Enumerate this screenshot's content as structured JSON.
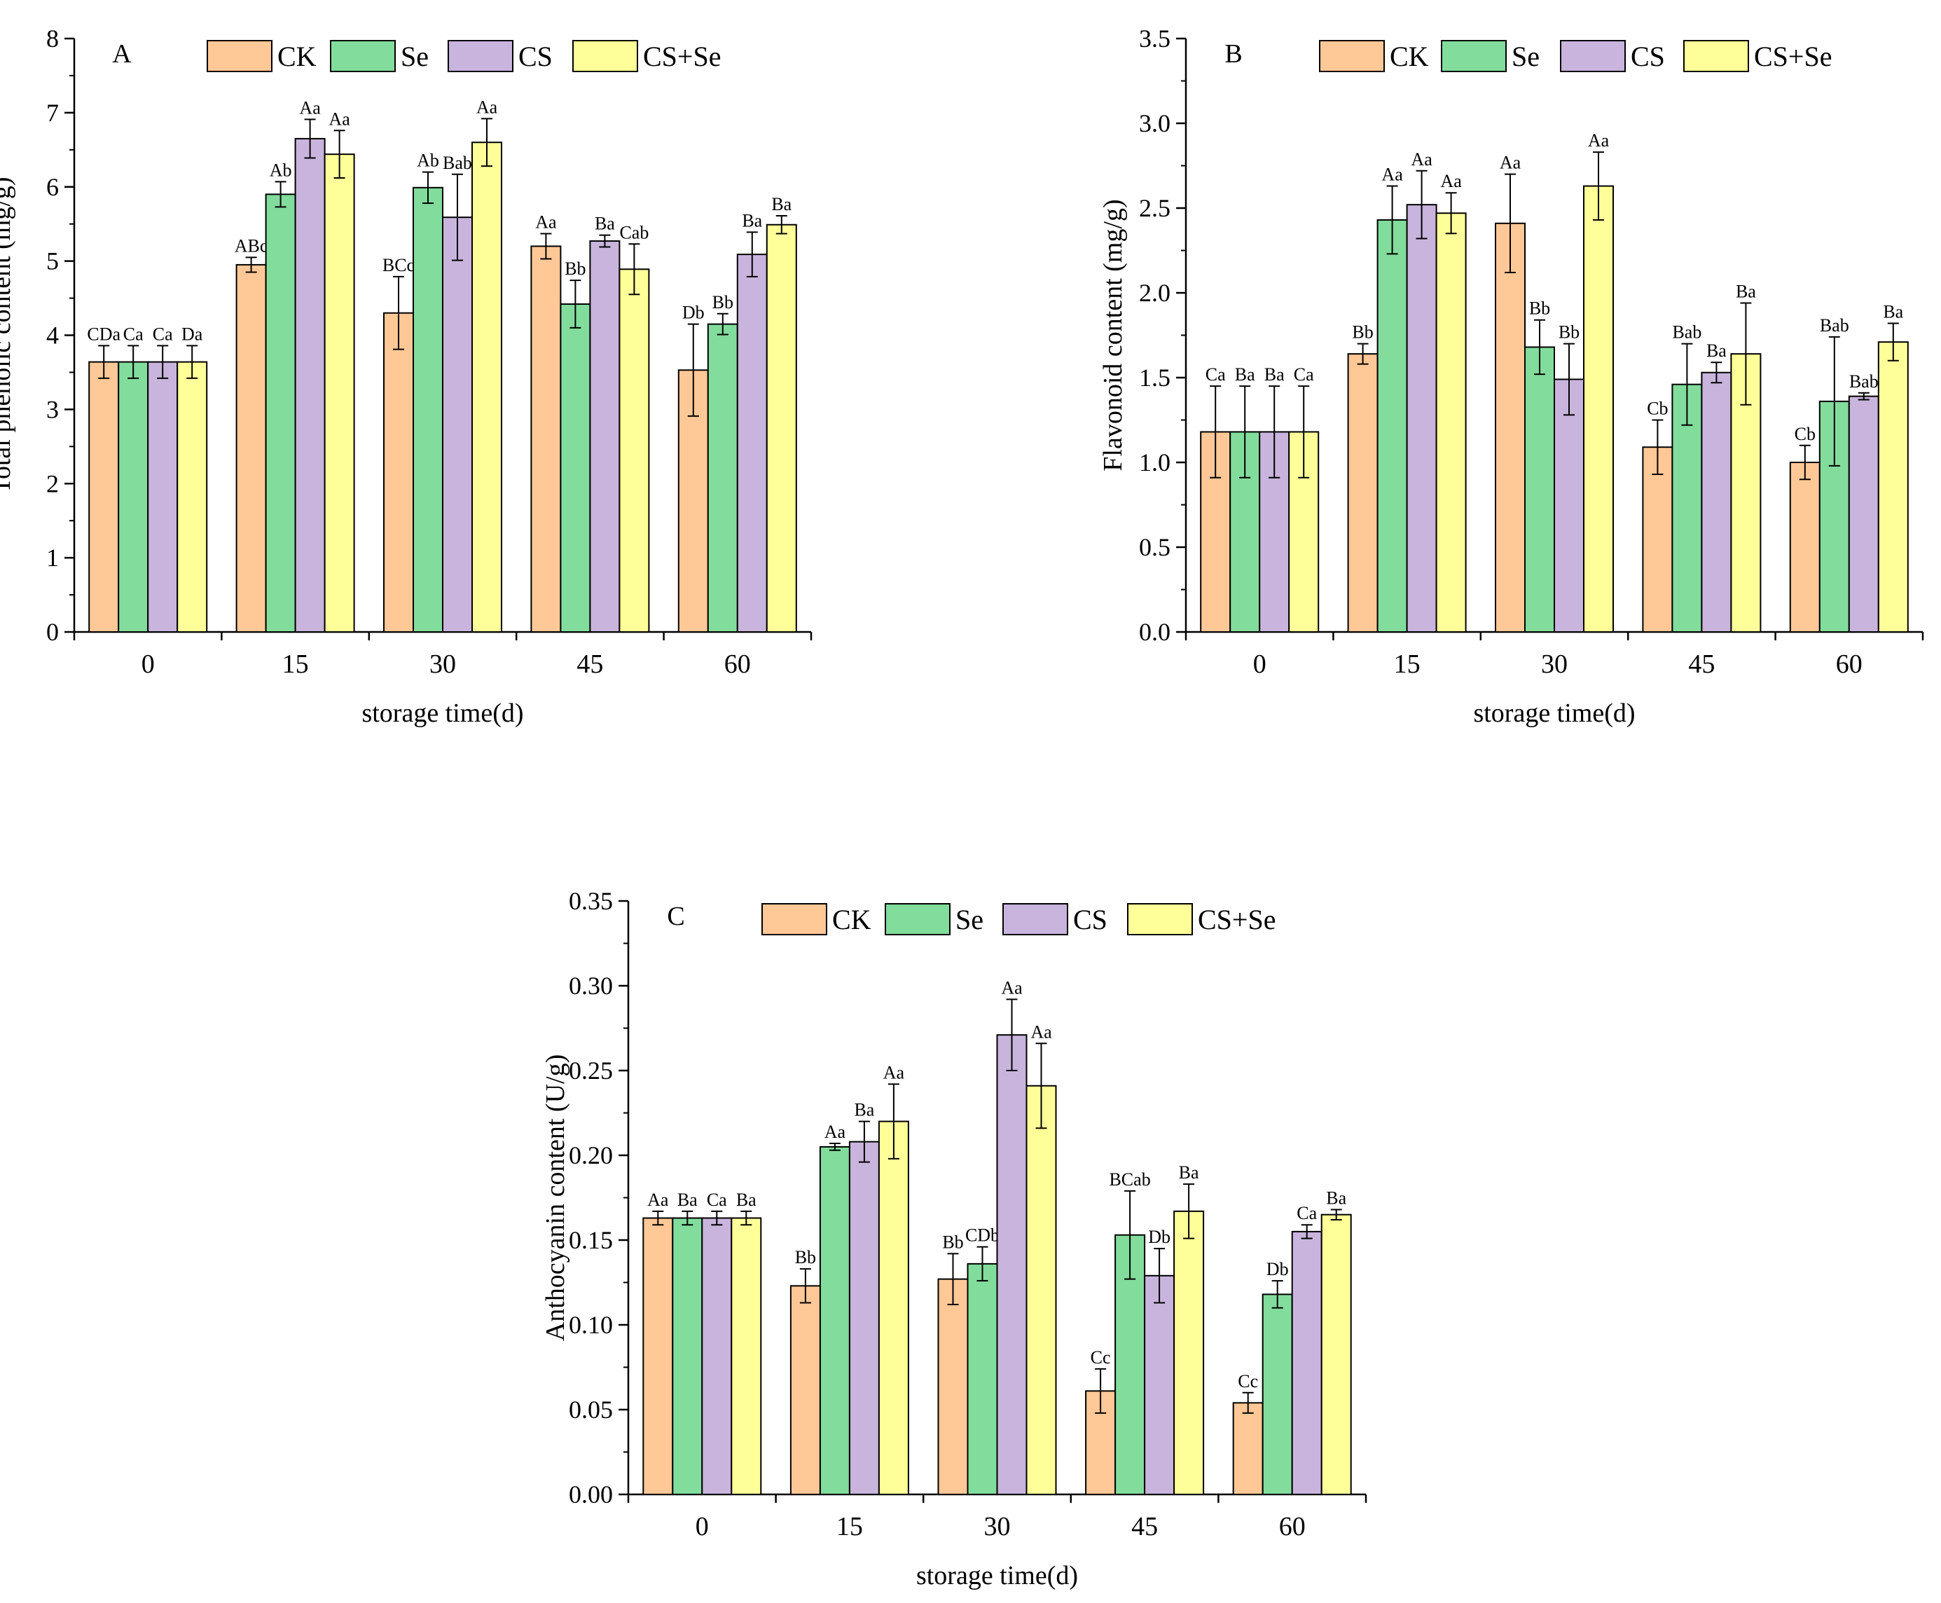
{
  "figure": {
    "series_colors": {
      "CK": "#FFC896",
      "Se": "#82DC9C",
      "CS": "#C8B4DC",
      "CS+Se": "#FFFF9A"
    },
    "edge_color": "#000000"
  },
  "chart_data": [
    {
      "type": "bar",
      "panel_label": "A",
      "title": "",
      "xlabel": "storage time(d)",
      "ylabel": "Total phenolic content (mg/g)",
      "categories": [
        "0",
        "15",
        "30",
        "45",
        "60"
      ],
      "ylim": [
        0,
        8
      ],
      "yticks": [
        0,
        1,
        2,
        3,
        4,
        5,
        6,
        7,
        8
      ],
      "ytick_labels": [
        "0",
        "1",
        "2",
        "3",
        "4",
        "5",
        "6",
        "7",
        "8"
      ],
      "legend": [
        "CK",
        "Se",
        "CS",
        "CS+Se"
      ],
      "legend_position": "top",
      "series": [
        {
          "name": "CK",
          "values": [
            3.64,
            4.95,
            4.3,
            5.2,
            3.53
          ],
          "errors": [
            0.22,
            0.1,
            0.49,
            0.17,
            0.62
          ],
          "letters": [
            "CDa",
            "ABc",
            "BCc",
            "Aa",
            "Db"
          ]
        },
        {
          "name": "Se",
          "values": [
            3.64,
            5.9,
            5.99,
            4.42,
            4.15
          ],
          "errors": [
            0.22,
            0.17,
            0.21,
            0.32,
            0.14
          ],
          "letters": [
            "Ca",
            "Ab",
            "Ab",
            "Bb",
            "Bb"
          ]
        },
        {
          "name": "CS",
          "values": [
            3.64,
            6.65,
            5.59,
            5.27,
            5.09
          ],
          "errors": [
            0.22,
            0.26,
            0.58,
            0.08,
            0.3
          ],
          "letters": [
            "Ca",
            "Aa",
            "Bab",
            "Ba",
            "Ba"
          ]
        },
        {
          "name": "CS+Se",
          "values": [
            3.64,
            6.44,
            6.6,
            4.89,
            5.49
          ],
          "errors": [
            0.22,
            0.32,
            0.32,
            0.34,
            0.12
          ],
          "letters": [
            "Da",
            "Aa",
            "Aa",
            "Cab",
            "Ba"
          ]
        }
      ]
    },
    {
      "type": "bar",
      "panel_label": "B",
      "title": "",
      "xlabel": "storage time(d)",
      "ylabel": "Flavonoid content (mg/g)",
      "categories": [
        "0",
        "15",
        "30",
        "45",
        "60"
      ],
      "ylim": [
        0,
        3.5
      ],
      "yticks": [
        0,
        0.5,
        1,
        1.5,
        2,
        2.5,
        3,
        3.5
      ],
      "ytick_labels": [
        "0.0",
        "0.5",
        "1.0",
        "1.5",
        "2.0",
        "2.5",
        "3.0",
        "3.5"
      ],
      "legend": [
        "CK",
        "Se",
        "CS",
        "CS+Se"
      ],
      "legend_position": "top",
      "series": [
        {
          "name": "CK",
          "values": [
            1.18,
            1.64,
            2.41,
            1.09,
            1.0
          ],
          "errors": [
            0.27,
            0.06,
            0.29,
            0.16,
            0.1
          ],
          "letters": [
            "Ca",
            "Bb",
            "Aa",
            "Cb",
            "Cb"
          ]
        },
        {
          "name": "Se",
          "values": [
            1.18,
            2.43,
            1.68,
            1.46,
            1.36
          ],
          "errors": [
            0.27,
            0.2,
            0.16,
            0.24,
            0.38
          ],
          "letters": [
            "Ba",
            "Aa",
            "Bb",
            "Bab",
            "Bab"
          ]
        },
        {
          "name": "CS",
          "values": [
            1.18,
            2.52,
            1.49,
            1.53,
            1.39
          ],
          "errors": [
            0.27,
            0.2,
            0.21,
            0.06,
            0.02
          ],
          "letters": [
            "Ba",
            "Aa",
            "Bb",
            "Ba",
            "Bab"
          ]
        },
        {
          "name": "CS+Se",
          "values": [
            1.18,
            2.47,
            2.63,
            1.64,
            1.71
          ],
          "errors": [
            0.27,
            0.12,
            0.2,
            0.3,
            0.11
          ],
          "letters": [
            "Ca",
            "Aa",
            "Aa",
            "Ba",
            "Ba"
          ]
        }
      ]
    },
    {
      "type": "bar",
      "panel_label": "C",
      "title": "",
      "xlabel": "storage time(d)",
      "ylabel": "Anthocyanin content (U/g)",
      "categories": [
        "0",
        "15",
        "30",
        "45",
        "60"
      ],
      "ylim": [
        0,
        0.35
      ],
      "yticks": [
        0,
        0.05,
        0.1,
        0.15,
        0.2,
        0.25,
        0.3,
        0.35
      ],
      "ytick_labels": [
        "0.00",
        "0.05",
        "0.10",
        "0.15",
        "0.20",
        "0.25",
        "0.30",
        "0.35"
      ],
      "legend": [
        "CK",
        "Se",
        "CS",
        "CS+Se"
      ],
      "legend_position": "top",
      "series": [
        {
          "name": "CK",
          "values": [
            0.163,
            0.123,
            0.127,
            0.061,
            0.054
          ],
          "errors": [
            0.004,
            0.01,
            0.015,
            0.013,
            0.006
          ],
          "letters": [
            "Aa",
            "Bb",
            "Bb",
            "Cc",
            "Cc"
          ]
        },
        {
          "name": "Se",
          "values": [
            0.163,
            0.205,
            0.136,
            0.153,
            0.118
          ],
          "errors": [
            0.004,
            0.002,
            0.01,
            0.026,
            0.008
          ],
          "letters": [
            "Ba",
            "Aa",
            "CDb",
            "BCab",
            "Db"
          ]
        },
        {
          "name": "CS",
          "values": [
            0.163,
            0.208,
            0.271,
            0.129,
            0.155
          ],
          "errors": [
            0.004,
            0.012,
            0.021,
            0.016,
            0.004
          ],
          "letters": [
            "Ca",
            "Ba",
            "Aa",
            "Db",
            "Ca"
          ]
        },
        {
          "name": "CS+Se",
          "values": [
            0.163,
            0.22,
            0.241,
            0.167,
            0.165
          ],
          "errors": [
            0.004,
            0.022,
            0.025,
            0.016,
            0.003
          ],
          "letters": [
            "Ba",
            "Aa",
            "Aa",
            "Ba",
            "Ba"
          ]
        }
      ]
    }
  ]
}
